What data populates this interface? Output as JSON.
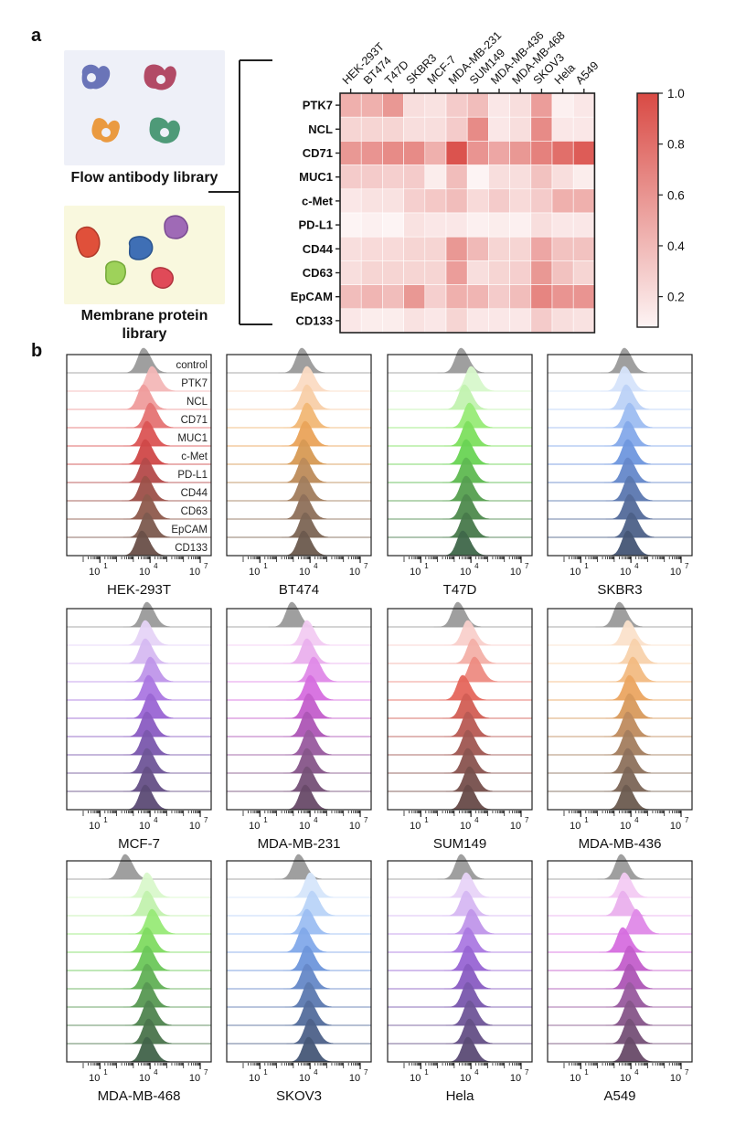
{
  "figure": {
    "panel_a_letter": "a",
    "panel_b_letter": "b",
    "library_top_caption": "Flow antibody library",
    "library_bottom_caption": "Membrane protein library"
  },
  "chart_data": [
    {
      "type": "heatmap",
      "title": "",
      "columns": [
        "HEK-293T",
        "BT474",
        "T47D",
        "SKBR3",
        "MCF-7",
        "MDA-MB-231",
        "SUM149",
        "MDA-MB-436",
        "MDA-MB-468",
        "SKOV3",
        "Hela",
        "A549"
      ],
      "rows": [
        "PTK7",
        "NCL",
        "CD71",
        "MUC1",
        "c-Met",
        "PD-L1",
        "CD44",
        "CD63",
        "EpCAM",
        "CD133"
      ],
      "values": [
        [
          0.45,
          0.45,
          0.58,
          0.2,
          0.18,
          0.3,
          0.38,
          0.15,
          0.2,
          0.55,
          0.1,
          0.15
        ],
        [
          0.25,
          0.25,
          0.25,
          0.2,
          0.2,
          0.3,
          0.65,
          0.15,
          0.2,
          0.65,
          0.15,
          0.15
        ],
        [
          0.58,
          0.6,
          0.65,
          0.65,
          0.45,
          0.95,
          0.6,
          0.5,
          0.58,
          0.7,
          0.8,
          0.9
        ],
        [
          0.3,
          0.3,
          0.28,
          0.3,
          0.12,
          0.38,
          0.08,
          0.2,
          0.2,
          0.35,
          0.2,
          0.12
        ],
        [
          0.15,
          0.18,
          0.18,
          0.28,
          0.32,
          0.38,
          0.22,
          0.3,
          0.22,
          0.3,
          0.45,
          0.45
        ],
        [
          0.05,
          0.1,
          0.02,
          0.18,
          0.15,
          0.15,
          0.1,
          0.12,
          0.1,
          0.2,
          0.15,
          0.15
        ],
        [
          0.2,
          0.22,
          0.22,
          0.25,
          0.25,
          0.58,
          0.4,
          0.25,
          0.25,
          0.5,
          0.35,
          0.35
        ],
        [
          0.2,
          0.25,
          0.25,
          0.25,
          0.25,
          0.55,
          0.2,
          0.25,
          0.28,
          0.58,
          0.35,
          0.25
        ],
        [
          0.38,
          0.42,
          0.38,
          0.58,
          0.28,
          0.45,
          0.42,
          0.3,
          0.38,
          0.68,
          0.6,
          0.6
        ],
        [
          0.15,
          0.12,
          0.12,
          0.18,
          0.15,
          0.25,
          0.15,
          0.15,
          0.15,
          0.3,
          0.2,
          0.18
        ]
      ],
      "colorbar": {
        "ticks": [
          "1.0",
          "0.8",
          "0.6",
          "0.4",
          "0.2"
        ],
        "tick_values": [
          1.0,
          0.8,
          0.6,
          0.4,
          0.2
        ],
        "range": [
          0.08,
          1.0
        ],
        "low_color": "#fdf4f4",
        "high_color": "#d94a44"
      }
    },
    {
      "type": "area",
      "subtype": "ridgeline-histograms",
      "row_labels": [
        "control",
        "PTK7",
        "NCL",
        "CD71",
        "MUC1",
        "c-Met",
        "PD-L1",
        "CD44",
        "CD63",
        "EpCAM",
        "CD133"
      ],
      "x_ticks": [
        "10",
        "10",
        "10"
      ],
      "x_tick_exponents": [
        "1",
        "4",
        "7"
      ],
      "x_tick_log_values": [
        1,
        4,
        7
      ],
      "x_log_range": [
        0,
        7
      ],
      "scale": "log",
      "panels": [
        {
          "name": "HEK-293T",
          "control_color": "#9a9a9a",
          "colors": [
            "#f4b8b8",
            "#f09c9c",
            "#e57373",
            "#dc5555",
            "#d04848",
            "#b54a4a",
            "#9c5048",
            "#8f5a4c",
            "#7d5a4f",
            "#6a5048"
          ],
          "peaks": [
            3.6,
            4.1,
            3.6,
            4.0,
            3.8,
            3.7,
            3.7,
            3.7,
            3.8,
            3.8,
            3.5
          ]
        },
        {
          "name": "BT474",
          "control_color": "#9a9a9a",
          "colors": [
            "#fbdcc4",
            "#f8cfa8",
            "#f2b876",
            "#eaa45a",
            "#d79a55",
            "#bd8c5a",
            "#a27d5c",
            "#8f705a",
            "#7d6655",
            "#6c5a4e"
          ],
          "peaks": [
            3.5,
            3.8,
            3.8,
            3.8,
            3.7,
            3.6,
            3.6,
            3.6,
            3.6,
            3.7,
            3.6
          ]
        },
        {
          "name": "T47D",
          "control_color": "#9a9a9a",
          "colors": [
            "#d8f8cc",
            "#c2f3b0",
            "#98ec78",
            "#7ee05e",
            "#6ad455",
            "#5fba52",
            "#56a050",
            "#4f8b4e",
            "#487a4b",
            "#40684a"
          ],
          "peaks": [
            3.4,
            4.0,
            3.6,
            3.9,
            3.8,
            3.7,
            3.7,
            3.7,
            3.7,
            3.7,
            3.5
          ]
        },
        {
          "name": "SKBR3",
          "control_color": "#9a9a9a",
          "colors": [
            "#d6e4fb",
            "#bcd2f7",
            "#9ebdf2",
            "#84a9ea",
            "#6f97df",
            "#6688cb",
            "#5b78b0",
            "#546b9a",
            "#4d6188",
            "#455675"
          ],
          "peaks": [
            3.6,
            3.6,
            3.7,
            3.9,
            3.8,
            3.8,
            3.8,
            3.9,
            3.9,
            4.0,
            3.8
          ]
        },
        {
          "name": "MCF-7",
          "control_color": "#9a9a9a",
          "colors": [
            "#e6d4f7",
            "#d6baf2",
            "#bf96ea",
            "#ab78e2",
            "#9a66d4",
            "#8b5cc2",
            "#7b58ad",
            "#6f5698",
            "#665086",
            "#5c4b76"
          ],
          "peaks": [
            3.8,
            3.7,
            3.7,
            4.0,
            3.9,
            4.0,
            3.8,
            3.8,
            3.8,
            3.8,
            3.7
          ]
        },
        {
          "name": "MDA-MB-231",
          "control_color": "#9a9a9a",
          "colors": [
            "#f3ccf3",
            "#eab0ee",
            "#e08ae8",
            "#d66ee0",
            "#c45ecc",
            "#ad56b6",
            "#985a9f",
            "#86568a",
            "#765178",
            "#694a69"
          ],
          "peaks": [
            2.9,
            3.8,
            3.8,
            4.2,
            4.0,
            3.9,
            3.8,
            3.9,
            3.8,
            3.8,
            3.7
          ]
        },
        {
          "name": "SUM149",
          "control_color": "#9a9a9a",
          "colors": [
            "#f9d0cc",
            "#f4b0a8",
            "#ee8c82",
            "#e5675c",
            "#d25e55",
            "#b95a54",
            "#a05752",
            "#8a5450",
            "#77504c",
            "#684a48"
          ],
          "peaks": [
            3.2,
            3.8,
            4.1,
            4.2,
            3.5,
            3.7,
            3.8,
            3.8,
            3.8,
            3.9,
            3.8
          ]
        },
        {
          "name": "MDA-MB-436",
          "control_color": "#9a9a9a",
          "colors": [
            "#fbe2cc",
            "#f8d2ac",
            "#f3bb82",
            "#eca662",
            "#d99a5c",
            "#bf8c5e",
            "#a47e5e",
            "#8e715c",
            "#7c6657",
            "#6c5b50"
          ],
          "peaks": [
            3.3,
            3.8,
            4.2,
            4.1,
            3.9,
            3.9,
            3.8,
            3.8,
            3.8,
            3.8,
            3.7
          ]
        },
        {
          "name": "MDA-MB-468",
          "control_color": "#9a9a9a",
          "colors": [
            "#daf8cc",
            "#c2f2ae",
            "#98ea78",
            "#80dc62",
            "#6cc85a",
            "#62b056",
            "#589853",
            "#508450",
            "#4a744c",
            "#42644a"
          ],
          "peaks": [
            2.5,
            3.8,
            3.8,
            4.1,
            3.8,
            3.8,
            3.8,
            3.8,
            3.9,
            3.9,
            3.8
          ]
        },
        {
          "name": "SKOV3",
          "control_color": "#9a9a9a",
          "colors": [
            "#d6e6fb",
            "#bad4f8",
            "#9cbef3",
            "#82a9ea",
            "#6e96dc",
            "#6688c8",
            "#5c7ab0",
            "#546d9c",
            "#4e628a",
            "#465878"
          ],
          "peaks": [
            3.3,
            4.0,
            4.1,
            3.8,
            3.6,
            3.8,
            3.8,
            3.9,
            3.9,
            4.0,
            3.9
          ]
        },
        {
          "name": "Hela",
          "control_color": "#9a9a9a",
          "colors": [
            "#e8d4f8",
            "#d6b8f3",
            "#c096ea",
            "#ab7ae2",
            "#9866d4",
            "#8a5cc2",
            "#7a58ad",
            "#6f5698",
            "#655086",
            "#5b4b76"
          ],
          "peaks": [
            3.4,
            3.7,
            3.7,
            4.0,
            3.8,
            3.8,
            3.8,
            3.8,
            3.9,
            3.9,
            3.8
          ]
        },
        {
          "name": "A549",
          "control_color": "#9a9a9a",
          "colors": [
            "#f4ccf4",
            "#eab0ee",
            "#e08ae8",
            "#d66ee0",
            "#c45ecc",
            "#ad56b6",
            "#985a9f",
            "#86568a",
            "#765178",
            "#694a69"
          ],
          "peaks": [
            3.4,
            3.6,
            3.5,
            4.3,
            3.5,
            3.9,
            3.9,
            3.9,
            3.9,
            3.9,
            3.9
          ]
        }
      ]
    }
  ]
}
